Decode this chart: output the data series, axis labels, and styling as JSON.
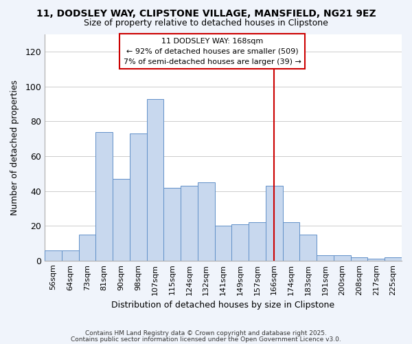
{
  "title": "11, DODSLEY WAY, CLIPSTONE VILLAGE, MANSFIELD, NG21 9EZ",
  "subtitle": "Size of property relative to detached houses in Clipstone",
  "xlabel": "Distribution of detached houses by size in Clipstone",
  "ylabel": "Number of detached properties",
  "footer_line1": "Contains HM Land Registry data © Crown copyright and database right 2025.",
  "footer_line2": "Contains public sector information licensed under the Open Government Licence v3.0.",
  "categories": [
    "56sqm",
    "64sqm",
    "73sqm",
    "81sqm",
    "90sqm",
    "98sqm",
    "107sqm",
    "115sqm",
    "124sqm",
    "132sqm",
    "141sqm",
    "149sqm",
    "157sqm",
    "166sqm",
    "174sqm",
    "183sqm",
    "191sqm",
    "200sqm",
    "208sqm",
    "217sqm",
    "225sqm"
  ],
  "values": [
    6,
    6,
    15,
    74,
    47,
    73,
    93,
    42,
    43,
    45,
    20,
    21,
    22,
    43,
    22,
    15,
    3,
    3,
    2,
    1,
    2
  ],
  "bar_color": "#c8d8ee",
  "bar_edge_color": "#6090c8",
  "ref_line_color": "#cc0000",
  "ref_line_x": 13,
  "annotation_text_line1": "11 DODSLEY WAY: 168sqm",
  "annotation_text_line2": "← 92% of detached houses are smaller (509)",
  "annotation_text_line3": "7% of semi-detached houses are larger (39) →",
  "ylim": [
    0,
    130
  ],
  "yticks": [
    0,
    20,
    40,
    60,
    80,
    100,
    120
  ],
  "fig_bg": "#f0f4fb",
  "plot_bg": "#ffffff",
  "grid_color": "#cccccc",
  "ann_box_color": "#ffffff",
  "ann_border_color": "#cc0000",
  "title_fontsize": 10,
  "subtitle_fontsize": 9
}
